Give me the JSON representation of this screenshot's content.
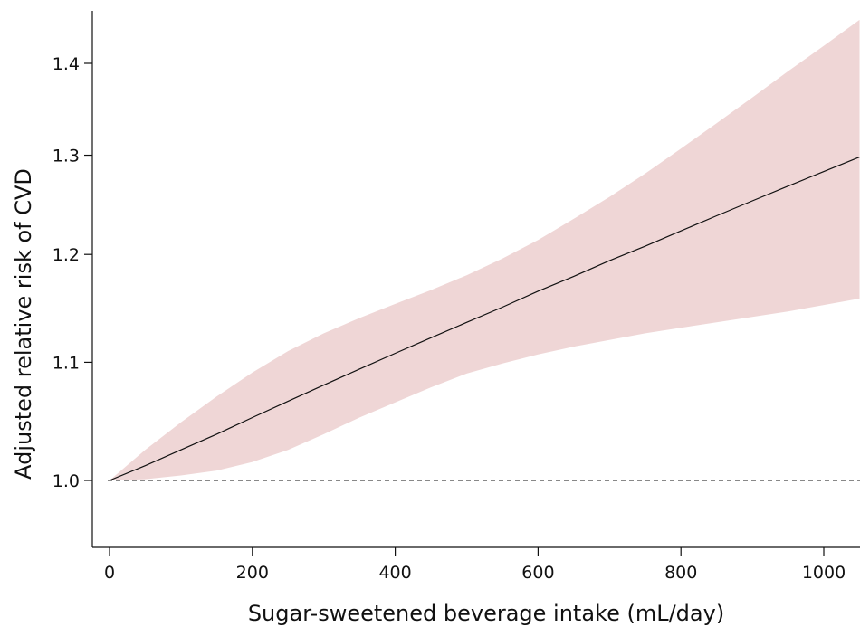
{
  "chart_data": {
    "type": "line",
    "title": "",
    "xlabel": "Sugar-sweetened beverage intake (mL/day)",
    "ylabel": "Adjusted relative risk of CVD",
    "log_y": true,
    "xlim": [
      -25,
      1050
    ],
    "ylim": [
      0.94,
      1.45
    ],
    "xticks": [
      0,
      200,
      400,
      600,
      800,
      1000
    ],
    "xtick_labels": [
      "0",
      "200",
      "400",
      "600",
      "800",
      "1000"
    ],
    "yticks": [
      1.0,
      1.1,
      1.2,
      1.3,
      1.4
    ],
    "ytick_labels": [
      "1.0",
      "1.1",
      "1.2",
      "1.3",
      "1.4"
    ],
    "grid": false,
    "legend": "none",
    "reference_line": {
      "y": 1.0,
      "style": "dashed"
    },
    "x": [
      0,
      50,
      100,
      150,
      200,
      250,
      300,
      350,
      400,
      450,
      500,
      550,
      600,
      650,
      700,
      750,
      800,
      850,
      900,
      950,
      1000,
      1050
    ],
    "estimate": [
      1.0,
      1.012,
      1.025,
      1.038,
      1.052,
      1.066,
      1.08,
      1.094,
      1.108,
      1.122,
      1.136,
      1.15,
      1.165,
      1.179,
      1.194,
      1.208,
      1.223,
      1.238,
      1.253,
      1.268,
      1.283,
      1.298
    ],
    "ci_lower": [
      1.0,
      1.001,
      1.004,
      1.008,
      1.015,
      1.025,
      1.038,
      1.052,
      1.065,
      1.078,
      1.09,
      1.099,
      1.107,
      1.114,
      1.12,
      1.126,
      1.131,
      1.136,
      1.141,
      1.146,
      1.152,
      1.158
    ],
    "ci_upper": [
      1.0,
      1.025,
      1.048,
      1.07,
      1.091,
      1.11,
      1.126,
      1.14,
      1.153,
      1.166,
      1.18,
      1.196,
      1.214,
      1.235,
      1.257,
      1.281,
      1.307,
      1.334,
      1.362,
      1.391,
      1.42,
      1.45
    ],
    "colors": {
      "ci_band": "#efd6d6",
      "line": "#111111",
      "axis": "#111111"
    }
  }
}
